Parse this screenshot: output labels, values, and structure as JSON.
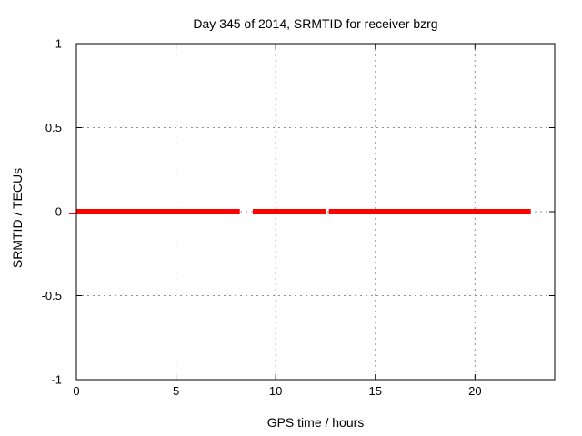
{
  "window": {
    "background": "#ffffff"
  },
  "chart_data": {
    "type": "line",
    "title": "Day 345 of 2014, SRMTID for receiver bzrg",
    "xlabel": "GPS time / hours",
    "ylabel": "SRMTID / TECUs",
    "xlim": [
      0,
      24
    ],
    "ylim": [
      -1,
      1
    ],
    "xticks": {
      "values": [
        0,
        5,
        10,
        15,
        20
      ],
      "labels": [
        "0",
        "5",
        "10",
        "15",
        "20"
      ]
    },
    "yticks": {
      "values": [
        -1,
        -0.5,
        0,
        0.5,
        1
      ],
      "labels": [
        "-1",
        "-0.5",
        "0",
        "0.5",
        "1"
      ]
    },
    "grid": true,
    "legend": false,
    "series": [
      {
        "name": "SRMTID",
        "color": "#ff0000",
        "value": 0,
        "line_width": 6,
        "segments_hours": [
          [
            0.0,
            8.2
          ],
          [
            8.85,
            12.5
          ],
          [
            12.67,
            22.8
          ]
        ],
        "left_axis_overdraw": true
      }
    ],
    "colors": {
      "border": "#000000",
      "grid": "#909090",
      "text": "#000000"
    }
  }
}
